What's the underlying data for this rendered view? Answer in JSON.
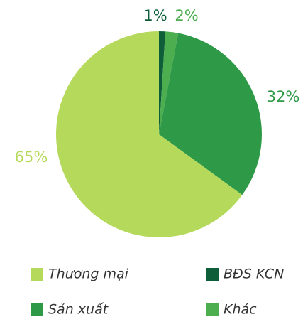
{
  "chart_data": {
    "type": "pie",
    "categories": [
      "BĐS KCN",
      "Khác",
      "Sản xuất",
      "Thương mại"
    ],
    "values": [
      1,
      2,
      32,
      65
    ],
    "value_labels": [
      "1%",
      "2%",
      "32%",
      "65%"
    ],
    "colors": [
      "#0f5e3a",
      "#4cae4f",
      "#2e9a47",
      "#b5d95a"
    ]
  }
}
